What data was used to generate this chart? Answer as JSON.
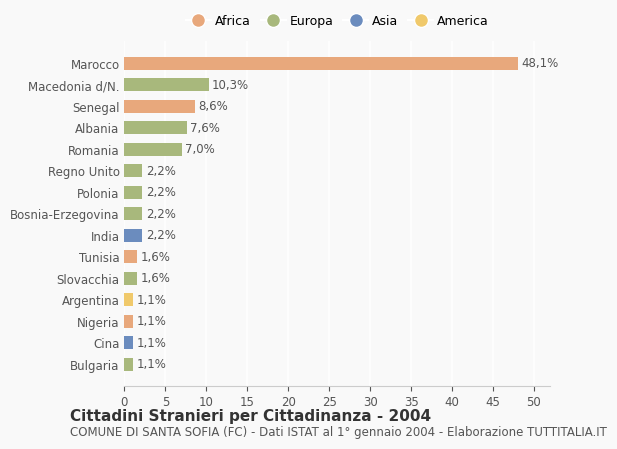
{
  "categories": [
    "Marocco",
    "Macedonia d/N.",
    "Senegal",
    "Albania",
    "Romania",
    "Regno Unito",
    "Polonia",
    "Bosnia-Erzegovina",
    "India",
    "Tunisia",
    "Slovacchia",
    "Argentina",
    "Nigeria",
    "Cina",
    "Bulgaria"
  ],
  "values": [
    48.1,
    10.3,
    8.6,
    7.6,
    7.0,
    2.2,
    2.2,
    2.2,
    2.2,
    1.6,
    1.6,
    1.1,
    1.1,
    1.1,
    1.1
  ],
  "labels": [
    "48,1%",
    "10,3%",
    "8,6%",
    "7,6%",
    "7,0%",
    "2,2%",
    "2,2%",
    "2,2%",
    "2,2%",
    "1,6%",
    "1,6%",
    "1,1%",
    "1,1%",
    "1,1%",
    "1,1%"
  ],
  "continents": [
    "Africa",
    "Europa",
    "Africa",
    "Europa",
    "Europa",
    "Europa",
    "Europa",
    "Europa",
    "Asia",
    "Africa",
    "Europa",
    "America",
    "Africa",
    "Asia",
    "Europa"
  ],
  "colors": {
    "Africa": "#E8A87C",
    "Europa": "#A8B87C",
    "Asia": "#6B8CBE",
    "America": "#F0C96B"
  },
  "title": "Cittadini Stranieri per Cittadinanza - 2004",
  "subtitle": "COMUNE DI SANTA SOFIA (FC) - Dati ISTAT al 1° gennaio 2004 - Elaborazione TUTTITALIA.IT",
  "xlim": [
    0,
    52
  ],
  "xticks": [
    0,
    5,
    10,
    15,
    20,
    25,
    30,
    35,
    40,
    45,
    50
  ],
  "background_color": "#f9f9f9",
  "grid_color": "#ffffff",
  "text_color": "#555555",
  "label_fontsize": 8.5,
  "tick_fontsize": 8.5,
  "title_fontsize": 11,
  "subtitle_fontsize": 8.5,
  "legend_order": [
    "Africa",
    "Europa",
    "Asia",
    "America"
  ]
}
